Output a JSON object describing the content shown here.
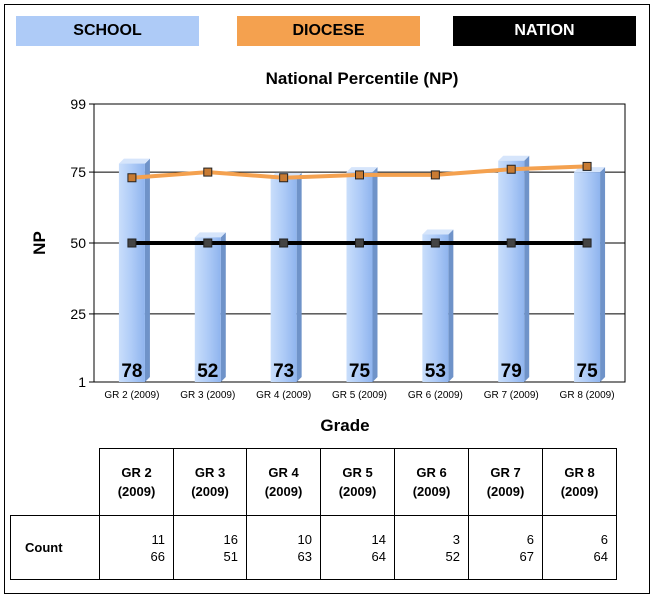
{
  "legend": {
    "school_label": "SCHOOL",
    "diocese_label": "DIOCESE",
    "nation_label": "NATION",
    "school_color": "#aecbf7",
    "diocese_color": "#f4a14f",
    "nation_color": "#000000"
  },
  "chart_data": {
    "type": "bar",
    "title": "National Percentile (NP)",
    "xlabel": "Grade",
    "ylabel": "NP",
    "ylim": [
      1,
      99
    ],
    "yticks": [
      "1",
      "25",
      "50",
      "75",
      "99"
    ],
    "grid": true,
    "categories": [
      "GR 2 (2009)",
      "GR 3 (2009)",
      "GR 4 (2009)",
      "GR 5 (2009)",
      "GR 6 (2009)",
      "GR 7 (2009)",
      "GR 8 (2009)"
    ],
    "series": [
      {
        "name": "SCHOOL",
        "kind": "bar",
        "values": [
          78,
          52,
          73,
          75,
          53,
          79,
          75
        ],
        "labels": [
          "78",
          "52",
          "73",
          "75",
          "53",
          "79",
          "75"
        ]
      },
      {
        "name": "DIOCESE",
        "kind": "line",
        "values": [
          73,
          75,
          73,
          74,
          74,
          76,
          77
        ]
      },
      {
        "name": "NATION",
        "kind": "line",
        "values": [
          50,
          50,
          50,
          50,
          50,
          50,
          50
        ]
      }
    ]
  },
  "table": {
    "headers": [
      {
        "line1": "GR 2",
        "line2": "(2009)"
      },
      {
        "line1": "GR 3",
        "line2": "(2009)"
      },
      {
        "line1": "GR 4",
        "line2": "(2009)"
      },
      {
        "line1": "GR 5",
        "line2": "(2009)"
      },
      {
        "line1": "GR 6",
        "line2": "(2009)"
      },
      {
        "line1": "GR 7",
        "line2": "(2009)"
      },
      {
        "line1": "GR 8",
        "line2": "(2009)"
      }
    ],
    "row_label": "Count",
    "counts": [
      {
        "top": "11",
        "bottom": "66"
      },
      {
        "top": "16",
        "bottom": "51"
      },
      {
        "top": "10",
        "bottom": "63"
      },
      {
        "top": "14",
        "bottom": "64"
      },
      {
        "top": "3",
        "bottom": "52"
      },
      {
        "top": "6",
        "bottom": "67"
      },
      {
        "top": "6",
        "bottom": "64"
      }
    ]
  }
}
